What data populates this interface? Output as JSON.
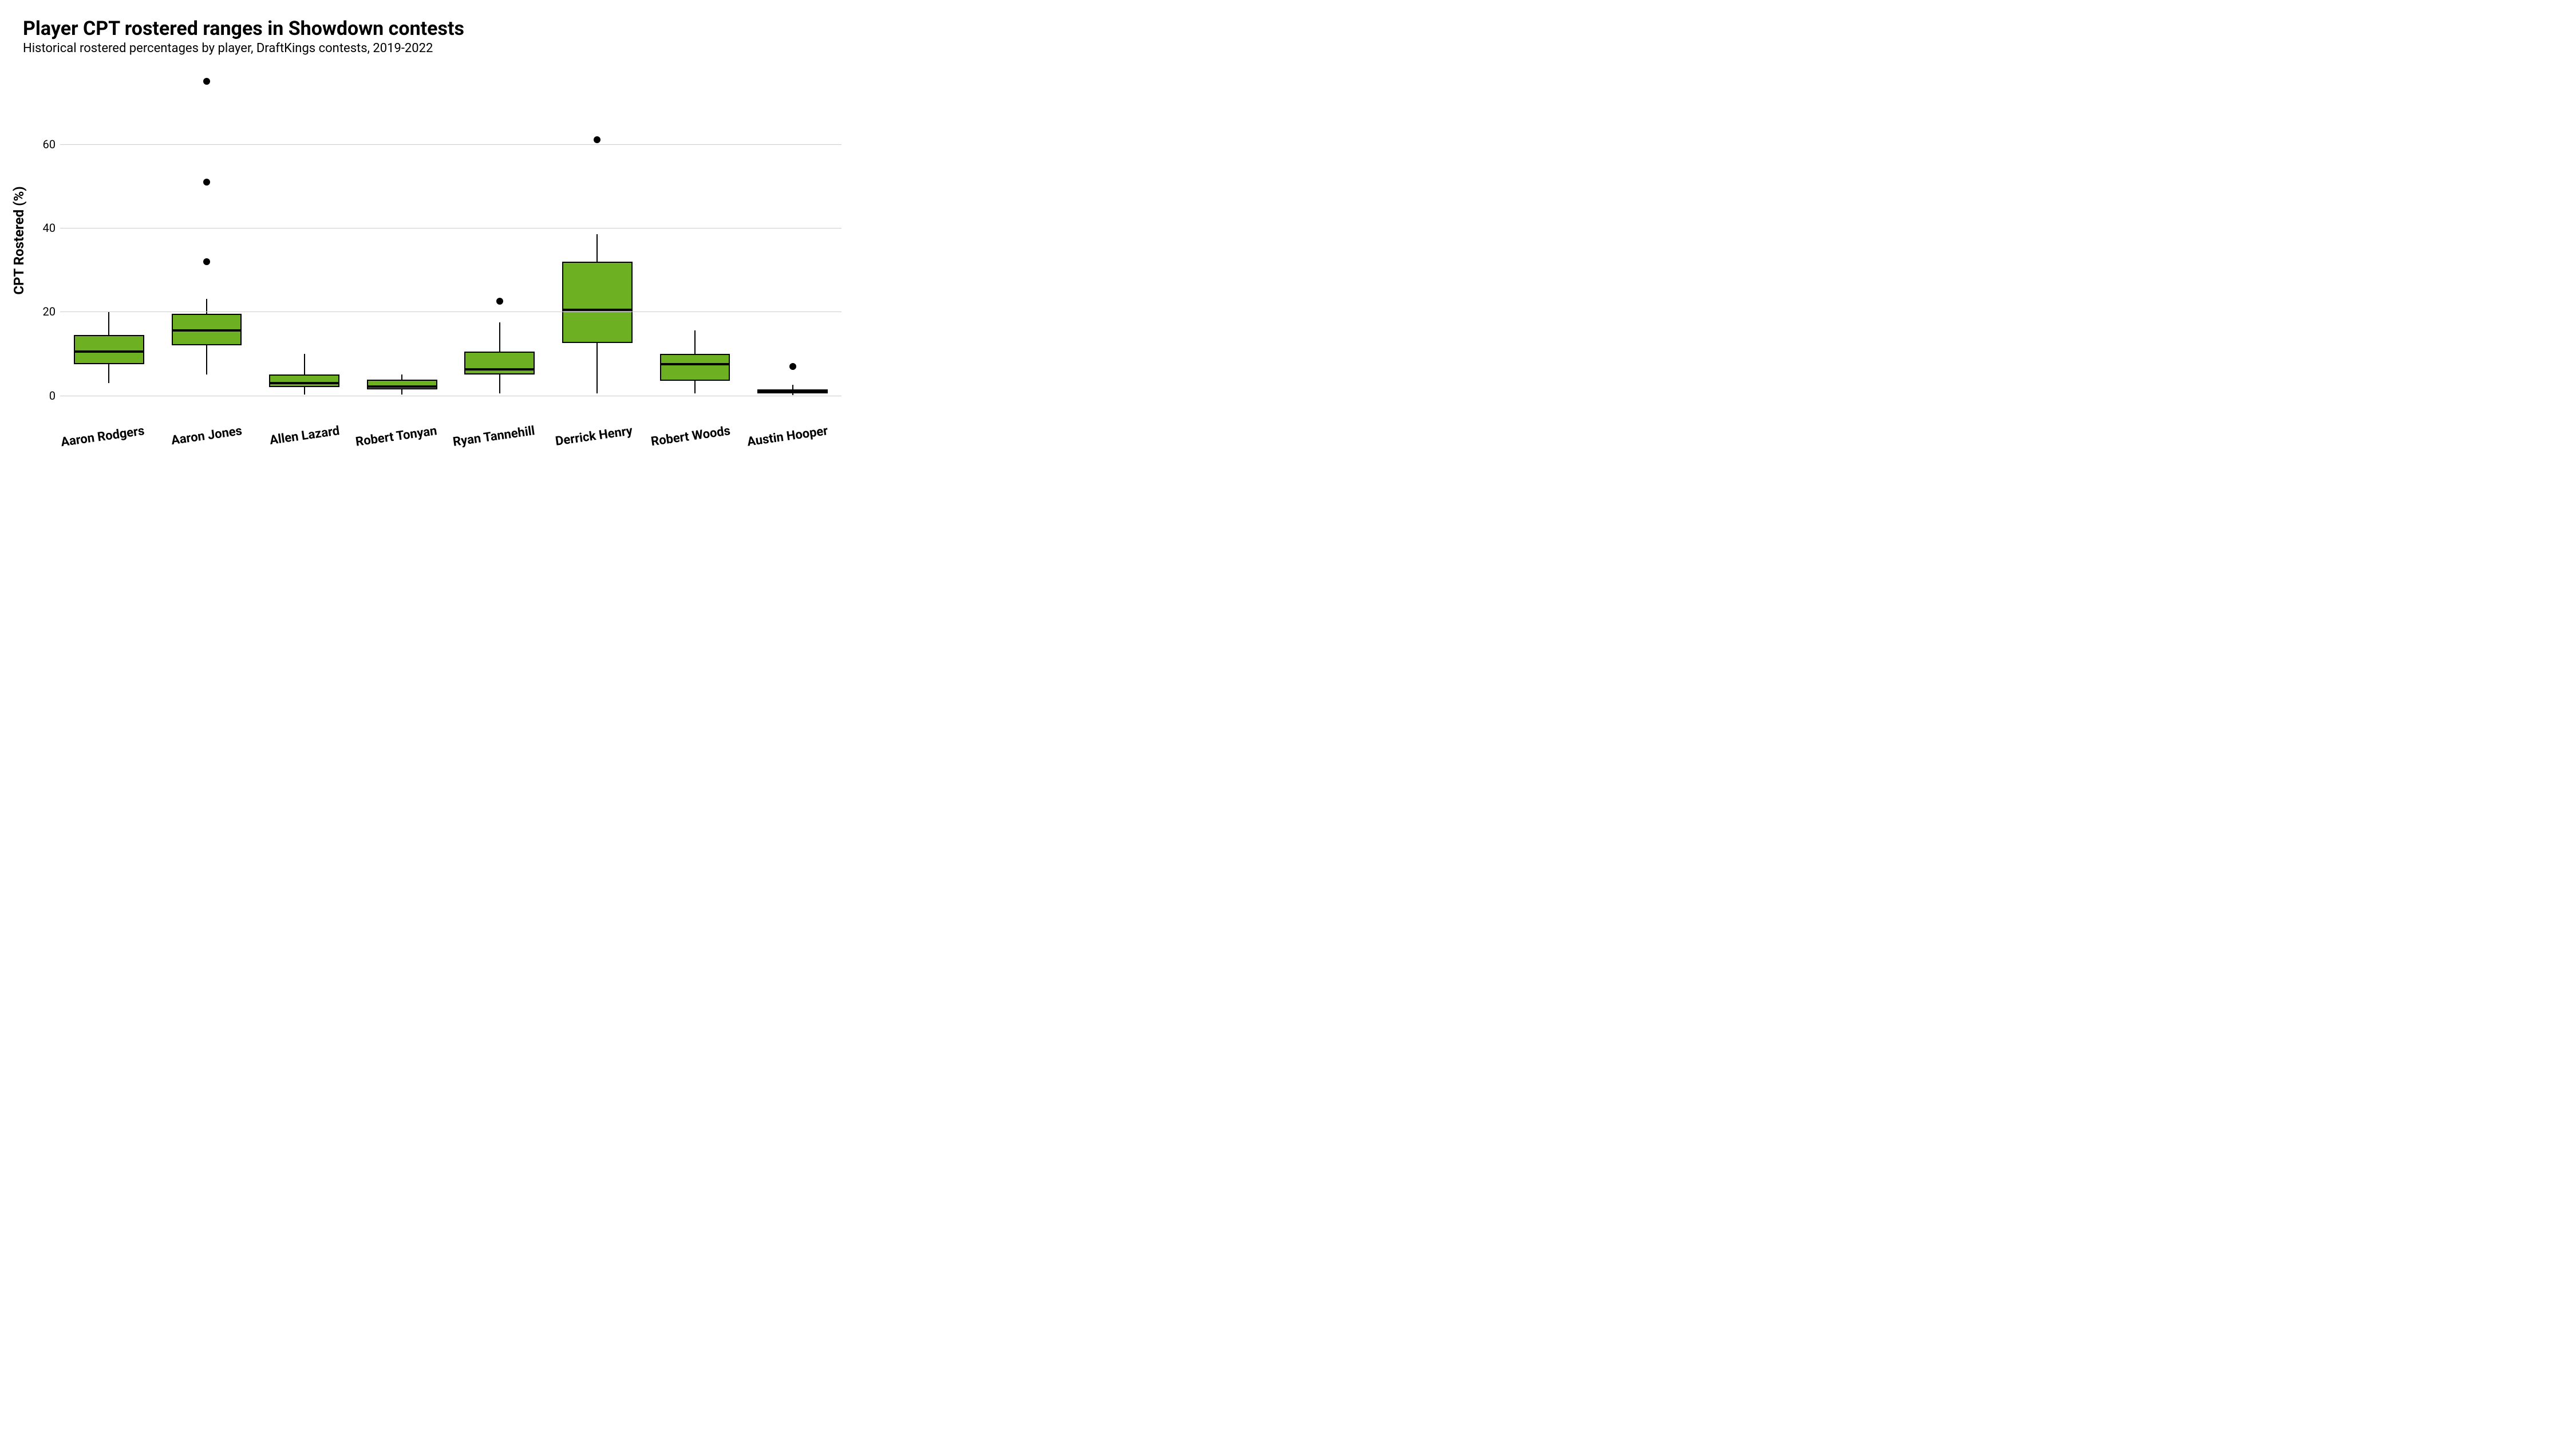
{
  "chart": {
    "title": "Player CPT rostered ranges in Showdown contests",
    "subtitle": "Historical rostered percentages by player, DraftKings contests, 2019-2022",
    "ylabel": "CPT Rostered (%)",
    "title_fontsize": 34,
    "subtitle_fontsize": 22,
    "ylabel_fontsize": 24,
    "xlabel_fontsize": 22,
    "ytick_fontsize": 20,
    "xlabel_rotation_deg": -8,
    "background_color": "#ffffff",
    "grid_color": "#cccccc",
    "box_fill": "#6db123",
    "box_stroke": "#000000",
    "median_color": "#000000",
    "whisker_color": "#000000",
    "outlier_color": "#000000",
    "box_width_ratio": 0.72,
    "ylim": [
      -4,
      78
    ],
    "yticks": [
      0,
      20,
      40,
      60
    ],
    "categories": [
      "Aaron Rodgers",
      "Aaron Jones",
      "Allen Lazard",
      "Robert Tonyan",
      "Ryan Tannehill",
      "Derrick Henry",
      "Robert Woods",
      "Austin Hooper"
    ],
    "boxes": [
      {
        "min": 3.0,
        "q1": 7.5,
        "median": 10.5,
        "q3": 14.5,
        "max": 20.0,
        "outliers": []
      },
      {
        "min": 5.0,
        "q1": 12.0,
        "median": 15.5,
        "q3": 19.5,
        "max": 23.0,
        "outliers": [
          32.0,
          51.0,
          75.0
        ]
      },
      {
        "min": 0.2,
        "q1": 2.0,
        "median": 3.0,
        "q3": 5.0,
        "max": 10.0,
        "outliers": []
      },
      {
        "min": 0.2,
        "q1": 1.5,
        "median": 2.2,
        "q3": 3.8,
        "max": 5.0,
        "outliers": []
      },
      {
        "min": 0.5,
        "q1": 5.0,
        "median": 6.2,
        "q3": 10.5,
        "max": 17.5,
        "outliers": [
          22.5
        ]
      },
      {
        "min": 0.5,
        "q1": 12.5,
        "median": 20.5,
        "q3": 32.0,
        "max": 38.5,
        "outliers": [
          61.0
        ]
      },
      {
        "min": 0.5,
        "q1": 3.5,
        "median": 7.5,
        "q3": 10.0,
        "max": 15.5,
        "outliers": []
      },
      {
        "min": 0.1,
        "q1": 0.5,
        "median": 1.0,
        "q3": 1.5,
        "max": 2.5,
        "outliers": [
          7.0
        ]
      }
    ]
  }
}
